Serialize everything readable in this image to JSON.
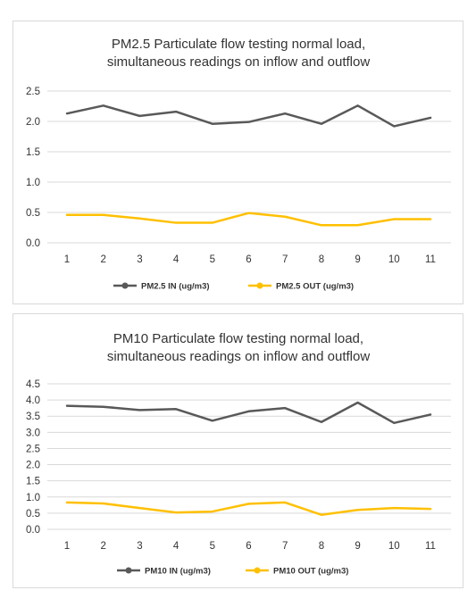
{
  "chart_data": [
    {
      "type": "line",
      "title_lines": [
        "PM2.5 Particulate flow testing normal load,",
        "simultaneous readings on inflow and outflow"
      ],
      "categories": [
        "1",
        "2",
        "3",
        "4",
        "5",
        "6",
        "7",
        "8",
        "9",
        "10",
        "11"
      ],
      "ylim": [
        0,
        2.5
      ],
      "yticks": [
        "0.0",
        "0.5",
        "1.0",
        "1.5",
        "2.0",
        "2.5"
      ],
      "grid": true,
      "legend_position": "bottom",
      "series": [
        {
          "name": "PM2.5 IN (ug/m3)",
          "color": "#595959",
          "values": [
            2.13,
            2.26,
            2.09,
            2.16,
            1.96,
            1.99,
            2.13,
            1.96,
            2.26,
            1.92,
            2.06
          ]
        },
        {
          "name": "PM2.5 OUT (ug/m3)",
          "color": "#FFC000",
          "values": [
            0.46,
            0.46,
            0.4,
            0.33,
            0.33,
            0.49,
            0.43,
            0.29,
            0.29,
            0.39,
            0.39
          ]
        }
      ]
    },
    {
      "type": "line",
      "title_lines": [
        "PM10 Particulate flow testing normal load,",
        "simultaneous readings on inflow and outflow"
      ],
      "categories": [
        "1",
        "2",
        "3",
        "4",
        "5",
        "6",
        "7",
        "8",
        "9",
        "10",
        "11"
      ],
      "ylim": [
        0,
        4.5
      ],
      "yticks": [
        "0.0",
        "0.5",
        "1.0",
        "1.5",
        "2.0",
        "2.5",
        "3.0",
        "3.5",
        "4.0",
        "4.5"
      ],
      "grid": true,
      "legend_position": "bottom",
      "series": [
        {
          "name": "PM10 IN (ug/m3)",
          "color": "#595959",
          "values": [
            3.82,
            3.79,
            3.69,
            3.72,
            3.36,
            3.65,
            3.75,
            3.32,
            3.92,
            3.29,
            3.55
          ]
        },
        {
          "name": "PM10 OUT (ug/m3)",
          "color": "#FFC000",
          "values": [
            0.83,
            0.8,
            0.66,
            0.52,
            0.55,
            0.79,
            0.83,
            0.45,
            0.6,
            0.66,
            0.63
          ]
        }
      ]
    }
  ]
}
